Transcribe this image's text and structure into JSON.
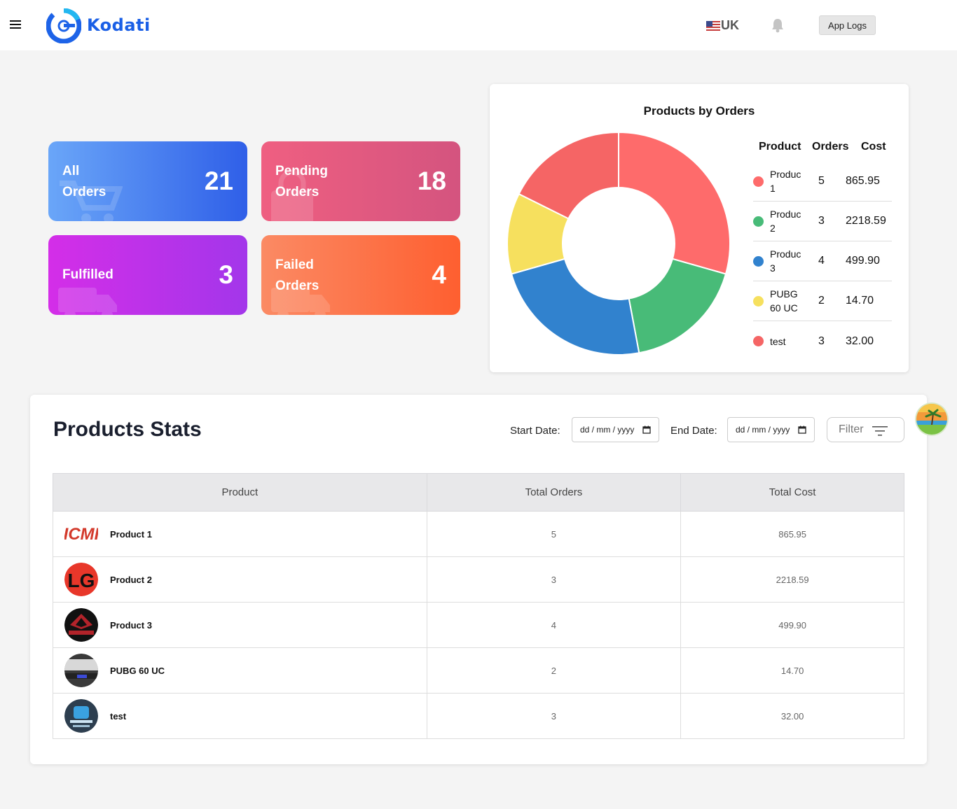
{
  "header": {
    "brand": "Kodati",
    "language": "UK",
    "app_logs_label": "App Logs"
  },
  "cards": {
    "all": {
      "label_line1": "All",
      "label_line2": "Orders",
      "value": "21"
    },
    "pending": {
      "label_line1": "Pending",
      "label_line2": "Orders",
      "value": "18"
    },
    "fulfilled": {
      "label": "Fulfilled",
      "value": "3"
    },
    "failed": {
      "label_line1": "Failed",
      "label_line2": "Orders",
      "value": "4"
    }
  },
  "chart": {
    "title": "Products by Orders",
    "headers": {
      "product": "Product",
      "orders": "Orders",
      "cost": "Cost"
    },
    "rows": [
      {
        "name_line1": "Produc",
        "name_line2": "1",
        "orders": "5",
        "cost": "865.95",
        "color": "#fe6b6b"
      },
      {
        "name_line1": "Produc",
        "name_line2": "2",
        "orders": "3",
        "cost": "2218.59",
        "color": "#48bb78"
      },
      {
        "name_line1": "Produc",
        "name_line2": "3",
        "orders": "4",
        "cost": "499.90",
        "color": "#3182ce"
      },
      {
        "name_line1": "PUBG",
        "name_line2": "60 UC",
        "orders": "2",
        "cost": "14.70",
        "color": "#f6e05e"
      },
      {
        "name_line1": "test",
        "name_line2": "",
        "orders": "3",
        "cost": "32.00",
        "color": "#f56565"
      }
    ]
  },
  "chart_data": {
    "type": "pie",
    "categories": [
      "Product 1",
      "Product 2",
      "Product 3",
      "PUBG 60 UC",
      "test"
    ],
    "values": [
      5,
      3,
      4,
      2,
      3
    ],
    "colors": [
      "#fe6b6b",
      "#48bb78",
      "#3182ce",
      "#f6e05e",
      "#f56565"
    ],
    "title": "Products by Orders",
    "donut": true
  },
  "stats": {
    "title": "Products Stats",
    "start_label": "Start Date:",
    "end_label": "End Date:",
    "date_placeholder": "dd / mm / yyyy",
    "filter_label": "Filter",
    "columns": [
      "Product",
      "Total Orders",
      "Total Cost"
    ],
    "rows": [
      {
        "name": "Product 1",
        "orders": "5",
        "cost": "865.95",
        "thumb": "cm-logo"
      },
      {
        "name": "Product 2",
        "orders": "3",
        "cost": "2218.59",
        "thumb": "lg-logo"
      },
      {
        "name": "Product 3",
        "orders": "4",
        "cost": "499.90",
        "thumb": "skynet-logo"
      },
      {
        "name": "PUBG 60 UC",
        "orders": "2",
        "cost": "14.70",
        "thumb": "photo-thumb"
      },
      {
        "name": "test",
        "orders": "3",
        "cost": "32.00",
        "thumb": "app-thumb"
      }
    ]
  }
}
